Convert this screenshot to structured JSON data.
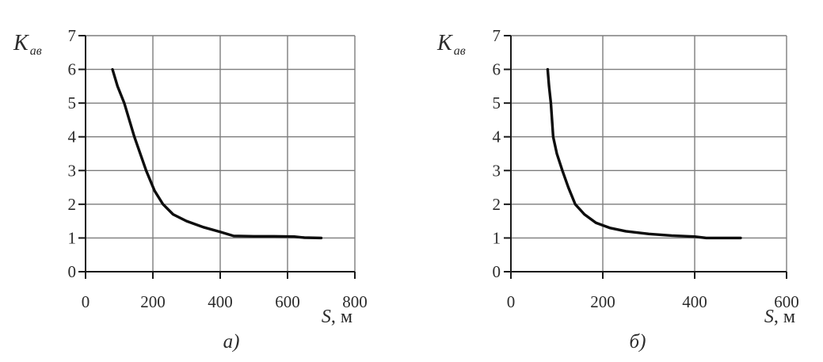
{
  "figure": {
    "background": "#ffffff",
    "text_color": "#2b2b2b"
  },
  "chart_data": [
    {
      "type": "line",
      "caption": "а)",
      "ylabel_main": "K",
      "ylabel_sub": "ав",
      "xlabel_main": "S",
      "xlabel_unit": ", м",
      "x_ticks": [
        0,
        200,
        400,
        600,
        800
      ],
      "y_ticks": [
        0,
        1,
        2,
        3,
        4,
        5,
        6,
        7
      ],
      "xlim": [
        0,
        800
      ],
      "ylim": [
        0,
        7
      ],
      "grid": true,
      "legend": null,
      "grid_color": "#7d7d7d",
      "axis_color": "#1a1a1a",
      "curve_color": "#0d0d0d",
      "series": [
        {
          "x": [
            80,
            95,
            115,
            145,
            180,
            205,
            230,
            260,
            300,
            350,
            400,
            440,
            500,
            560,
            620,
            650,
            700
          ],
          "y": [
            6.0,
            5.5,
            5.0,
            4.0,
            3.0,
            2.4,
            2.0,
            1.7,
            1.5,
            1.32,
            1.18,
            1.06,
            1.05,
            1.05,
            1.04,
            1.01,
            1.0
          ]
        }
      ]
    },
    {
      "type": "line",
      "caption": "б)",
      "ylabel_main": "K",
      "ylabel_sub": "ав",
      "xlabel_main": "S",
      "xlabel_unit": ", м",
      "x_ticks": [
        0,
        200,
        400,
        600
      ],
      "y_ticks": [
        0,
        1,
        2,
        3,
        4,
        5,
        6,
        7
      ],
      "xlim": [
        0,
        600
      ],
      "ylim": [
        0,
        7
      ],
      "grid": true,
      "legend": null,
      "grid_color": "#7d7d7d",
      "axis_color": "#1a1a1a",
      "curve_color": "#0d0d0d",
      "series": [
        {
          "x": [
            80,
            83,
            87,
            92,
            100,
            112,
            125,
            140,
            160,
            185,
            215,
            250,
            300,
            350,
            400,
            425,
            500
          ],
          "y": [
            6.0,
            5.5,
            5.0,
            4.0,
            3.5,
            3.0,
            2.5,
            2.0,
            1.7,
            1.45,
            1.3,
            1.2,
            1.12,
            1.07,
            1.04,
            1.0,
            1.0
          ]
        }
      ]
    }
  ]
}
